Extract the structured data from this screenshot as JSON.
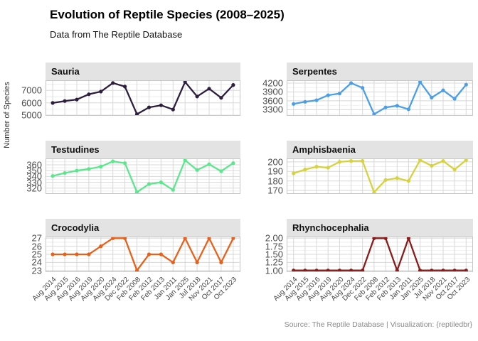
{
  "title": "Evolution of Reptile Species (2008–2025)",
  "subtitle": "Data from The Reptile Database",
  "caption": "Source: The Reptile Database | Visualization: {reptiledbr}",
  "y_axis_title": "Number of Species",
  "chart_data": {
    "type": "line",
    "layout": "2x3 facet grid, free y scales",
    "legend": "none",
    "grid": "on",
    "x_tick_rotation": 45,
    "categories": [
      "Aug 2014",
      "Aug 2015",
      "Aug 2016",
      "Aug 2019",
      "Aug 2020",
      "Aug 2024",
      "Dec 2022",
      "Feb 2008",
      "Feb 2012",
      "Feb 2013",
      "Jan 2011",
      "Jan 2025",
      "Jul 2018",
      "Nov 2021",
      "Oct 2017",
      "Oct 2023"
    ],
    "facets": [
      {
        "name": "Sauria",
        "color": "#2D1E3E",
        "yticks": [
          5000,
          6000,
          7000
        ],
        "ytick_labels": [
          "5000",
          "6000",
          "7000"
        ],
        "ylim": [
          4948,
          7821
        ],
        "values": [
          5987,
          6145,
          6263,
          6687,
          6905,
          7600,
          7310,
          5079,
          5634,
          5796,
          5461,
          7690,
          6512,
          7144,
          6399,
          7440
        ]
      },
      {
        "name": "Serpentes",
        "color": "#4A9FE8",
        "yticks": [
          3300,
          3600,
          3900,
          4200
        ],
        "ytick_labels": [
          "3300",
          "3600",
          "3900",
          "4200"
        ],
        "ylim": [
          3094,
          4295
        ],
        "values": [
          3496,
          3567,
          3619,
          3789,
          3848,
          4199,
          4038,
          3149,
          3378,
          3432,
          3315,
          4240,
          3709,
          3956,
          3671,
          4145
        ]
      },
      {
        "name": "Testudines",
        "color": "#5BE88C",
        "yticks": [
          320,
          330,
          340,
          350,
          360
        ],
        "ytick_labels": [
          "320",
          "330",
          "340",
          "350",
          "360"
        ],
        "ylim": [
          310,
          371
        ],
        "values": [
          341,
          346,
          350,
          353,
          357,
          366,
          363,
          313,
          327,
          330,
          317,
          368,
          351,
          361,
          349,
          363
        ]
      },
      {
        "name": "Amphisbaenia",
        "color": "#D6D33E",
        "yticks": [
          170,
          180,
          190,
          200
        ],
        "ytick_labels": [
          "170",
          "180",
          "190",
          "200"
        ],
        "ylim": [
          166.3,
          203.7
        ],
        "values": [
          188,
          192,
          195,
          194,
          200,
          201,
          201,
          168,
          181,
          183,
          180,
          202,
          196,
          201,
          192,
          202
        ]
      },
      {
        "name": "Crocodylia",
        "color": "#E8611B",
        "yticks": [
          23,
          24,
          25,
          26,
          27
        ],
        "ytick_labels": [
          "23",
          "24",
          "25",
          "26",
          "27"
        ],
        "ylim": [
          22.8,
          27.2
        ],
        "values": [
          25,
          25,
          25,
          25,
          26,
          27,
          27,
          23,
          25,
          25,
          24,
          27,
          24,
          27,
          24,
          27
        ]
      },
      {
        "name": "Rhynchocephalia",
        "color": "#8B1A1A",
        "yticks": [
          1,
          1.25,
          1.5,
          1.75,
          2
        ],
        "ytick_labels": [
          "1.00",
          "1.25",
          "1.50",
          "1.75",
          "2.00"
        ],
        "ylim": [
          0.95,
          2.05
        ],
        "values": [
          1,
          1,
          1,
          1,
          1,
          1,
          1,
          2,
          2,
          1,
          2,
          1,
          1,
          1,
          1,
          1
        ]
      }
    ]
  }
}
